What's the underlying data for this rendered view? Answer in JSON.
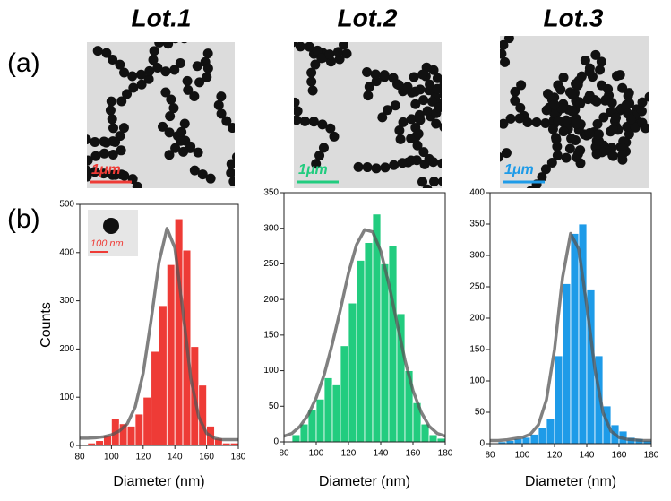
{
  "panel_labels": [
    "(a)",
    "(b)"
  ],
  "micrographs": [
    {
      "scale_label": "1μm"
    },
    {
      "scale_label": "1μm"
    },
    {
      "scale_label": "1μm"
    }
  ],
  "inset_label": "100 nm",
  "chart_data": [
    {
      "type": "histogram",
      "title": "Lot.1",
      "x_label": "Diameter (nm)",
      "y_label": "Counts",
      "color": "#ee3b36",
      "bins": [
        85,
        90,
        95,
        100,
        105,
        110,
        115,
        120,
        125,
        130,
        135,
        140,
        145,
        150,
        155,
        160,
        165,
        170,
        175,
        180
      ],
      "values": [
        5,
        10,
        20,
        55,
        45,
        40,
        65,
        100,
        195,
        290,
        375,
        470,
        405,
        205,
        125,
        40,
        15,
        5,
        5
      ],
      "fit": {
        "x": [
          80,
          85,
          90,
          95,
          100,
          105,
          110,
          115,
          120,
          125,
          130,
          135,
          140,
          145,
          150,
          155,
          160,
          165,
          170,
          175,
          180
        ],
        "values": [
          15,
          15,
          16,
          18,
          22,
          30,
          45,
          80,
          150,
          260,
          380,
          450,
          410,
          280,
          140,
          60,
          25,
          15,
          12,
          12,
          12
        ]
      },
      "xlim": [
        80,
        180
      ],
      "xticks": [
        80,
        100,
        120,
        140,
        160,
        180
      ],
      "ylim": [
        0,
        500
      ],
      "yticks": [
        0,
        100,
        200,
        300,
        400,
        500
      ]
    },
    {
      "type": "histogram",
      "title": "Lot.2",
      "x_label": "Diameter (nm)",
      "color": "#22cc7f",
      "bins": [
        85,
        90,
        95,
        100,
        105,
        110,
        115,
        120,
        125,
        130,
        135,
        140,
        145,
        150,
        155,
        160,
        165,
        170,
        175,
        180
      ],
      "values": [
        10,
        25,
        45,
        60,
        90,
        80,
        135,
        195,
        255,
        280,
        320,
        250,
        275,
        180,
        100,
        55,
        25,
        10,
        5
      ],
      "fit": {
        "x": [
          80,
          85,
          90,
          95,
          100,
          105,
          110,
          115,
          120,
          125,
          130,
          135,
          140,
          145,
          150,
          155,
          160,
          165,
          170,
          175,
          180
        ],
        "values": [
          8,
          12,
          22,
          38,
          62,
          95,
          138,
          186,
          237,
          277,
          298,
          295,
          268,
          222,
          168,
          115,
          72,
          42,
          22,
          12,
          8
        ]
      },
      "xlim": [
        80,
        180
      ],
      "xticks": [
        80,
        100,
        120,
        140,
        160,
        180
      ],
      "ylim": [
        0,
        350
      ],
      "yticks": [
        0,
        50,
        100,
        150,
        200,
        250,
        300,
        350
      ]
    },
    {
      "type": "histogram",
      "title": "Lot.3",
      "x_label": "Diameter (nm)",
      "color": "#1e9be8",
      "bins": [
        85,
        90,
        95,
        100,
        105,
        110,
        115,
        120,
        125,
        130,
        135,
        140,
        145,
        150,
        155,
        160,
        165,
        170,
        175,
        180
      ],
      "values": [
        3,
        5,
        8,
        10,
        15,
        25,
        40,
        140,
        255,
        335,
        350,
        245,
        140,
        60,
        30,
        20,
        10,
        8,
        5
      ],
      "fit": {
        "x": [
          80,
          85,
          90,
          95,
          100,
          105,
          110,
          115,
          120,
          125,
          130,
          135,
          140,
          145,
          150,
          155,
          160,
          165,
          170,
          175,
          180
        ],
        "values": [
          5,
          5,
          6,
          8,
          10,
          15,
          30,
          70,
          150,
          265,
          335,
          310,
          220,
          120,
          50,
          20,
          10,
          7,
          6,
          5,
          5
        ]
      },
      "xlim": [
        80,
        180
      ],
      "xticks": [
        80,
        100,
        120,
        140,
        160,
        180
      ],
      "ylim": [
        0,
        400
      ],
      "yticks": [
        0,
        50,
        100,
        150,
        200,
        250,
        300,
        350,
        400
      ]
    }
  ]
}
